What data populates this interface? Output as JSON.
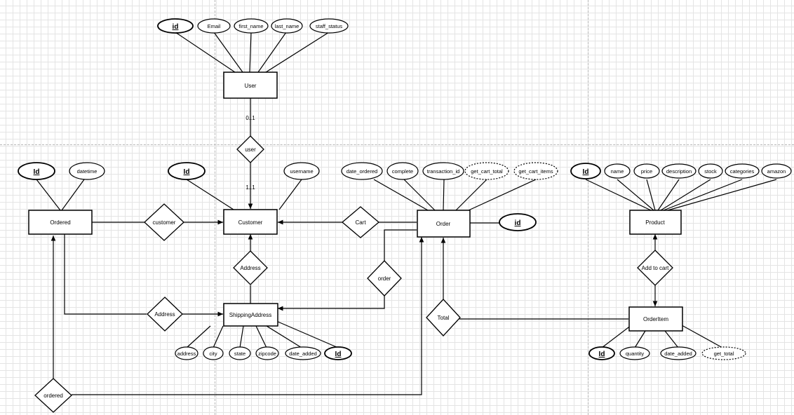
{
  "entities": {
    "user": "User",
    "customer": "Customer",
    "ordered": "Ordered",
    "order": "Order",
    "product": "Product",
    "shipping_address": "ShippingAddress",
    "order_item": "OrderItem"
  },
  "relationships": {
    "user": "user",
    "customer": "customer",
    "cart": "Cart",
    "address_customer": "Address",
    "address_ordered": "Address",
    "order": "order",
    "add_to_cart": "Add to cart",
    "total": "Total",
    "ordered": "ordered"
  },
  "cardinality": {
    "user_side": "0..1",
    "customer_side": "1..1"
  },
  "attributes": {
    "user": [
      "id",
      "Email",
      "first_name",
      "last_name",
      "staff_status"
    ],
    "ordered": [
      "Id",
      "datetime"
    ],
    "customer": [
      "Id",
      "username"
    ],
    "order": [
      "date_ordered",
      "complete",
      "transaction_id",
      "get_cart_total",
      "get_cart_items",
      "id"
    ],
    "product": [
      "Id",
      "name",
      "price",
      "description",
      "stock",
      "categories",
      "amazon"
    ],
    "shipping_address": [
      "address",
      "city",
      "state",
      "zipcode",
      "date_added",
      "Id"
    ],
    "order_item": [
      "Id",
      "quantity",
      "date_added",
      "get_total"
    ]
  },
  "notation": {
    "key_attributes": [
      "id",
      "Id"
    ],
    "derived_attributes": [
      "get_cart_total",
      "get_cart_items",
      "get_total"
    ]
  }
}
